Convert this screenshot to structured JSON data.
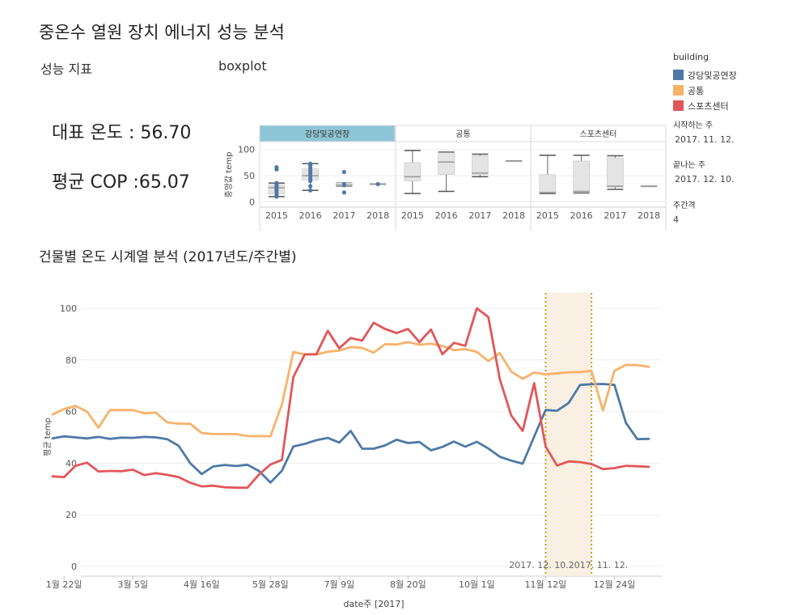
{
  "title": "중온수 열원 장치 에너지 성능 분석",
  "performance": {
    "label": "성능 지표",
    "rep_temp": "대표 온도 : 56.70",
    "avg_cop": "평균 COP :65.07"
  },
  "boxplot_label": "boxplot",
  "timeseries_title": "건물별  온도 시계열 분석 (2017년도/주간별)",
  "legend": {
    "title": "building",
    "items": [
      {
        "label": "강당및공연장",
        "color": "#4e79a7"
      },
      {
        "label": "공통",
        "color": "#f8b26a"
      },
      {
        "label": "스포츠센터",
        "color": "#e15759"
      }
    ]
  },
  "parameters": [
    {
      "label": "시작하는 주",
      "value": "2017. 11. 12."
    },
    {
      "label": "끝나는 주",
      "value": "2017. 12. 10."
    },
    {
      "label": "주간격",
      "value": "4"
    }
  ],
  "chart_data": [
    {
      "type": "boxplot",
      "ylabel": "중앙값 temp",
      "yticks": [
        0,
        50,
        100
      ],
      "ylim": [
        -10,
        115
      ],
      "facet_header_highlight": "#8ec5d6",
      "facets": [
        {
          "name": "강당및공연장",
          "categories": [
            "2015",
            "2016",
            "2017",
            "2018"
          ],
          "boxes": [
            {
              "min": 10,
              "q1": 15,
              "median": 27,
              "q3": 33,
              "max": 36,
              "points": [
                10,
                13,
                18,
                22,
                25,
                27,
                30,
                33,
                36,
                62,
                66
              ]
            },
            {
              "min": 22,
              "q1": 42,
              "median": 50,
              "q3": 63,
              "max": 73,
              "points": [
                22,
                30,
                40,
                45,
                50,
                55,
                60,
                65,
                70,
                73
              ]
            },
            {
              "min": 30,
              "q1": 30,
              "median": 32,
              "q3": 36,
              "max": 36,
              "points": [
                18,
                32,
                34,
                57
              ]
            },
            {
              "min": 34,
              "q1": 34,
              "median": 34,
              "q3": 34,
              "max": 34,
              "points": [
                34
              ]
            }
          ]
        },
        {
          "name": "공통",
          "categories": [
            "2015",
            "2016",
            "2017",
            "2018"
          ],
          "boxes": [
            {
              "min": 16,
              "q1": 40,
              "median": 48,
              "q3": 75,
              "max": 98
            },
            {
              "min": 20,
              "q1": 52,
              "median": 76,
              "q3": 94,
              "max": 95
            },
            {
              "min": 48,
              "q1": 52,
              "median": 55,
              "q3": 88,
              "max": 91
            },
            {
              "min": 78,
              "q1": 78,
              "median": 78,
              "q3": 78,
              "max": 78
            }
          ]
        },
        {
          "name": "스포츠센터",
          "categories": [
            "2015",
            "2016",
            "2017",
            "2018"
          ],
          "boxes": [
            {
              "min": 16,
              "q1": 17,
              "median": 18,
              "q3": 52,
              "max": 89
            },
            {
              "min": 17,
              "q1": 18,
              "median": 20,
              "q3": 78,
              "max": 89
            },
            {
              "min": 24,
              "q1": 28,
              "median": 30,
              "q3": 84,
              "max": 88
            },
            {
              "min": 30,
              "q1": 30,
              "median": 30,
              "q3": 30,
              "max": 30
            }
          ]
        }
      ]
    },
    {
      "type": "line",
      "xlabel": "date주 [2017]",
      "ylabel": "평균 temp",
      "ylim": [
        0,
        100
      ],
      "yticks": [
        0,
        20,
        40,
        60,
        80,
        100
      ],
      "x_ticks": [
        {
          "week": 2,
          "label": "1월 22일"
        },
        {
          "week": 8,
          "label": "3월 5일"
        },
        {
          "week": 14,
          "label": "4월 16일"
        },
        {
          "week": 20,
          "label": "5월 28일"
        },
        {
          "week": 26,
          "label": "7월 9일"
        },
        {
          "week": 32,
          "label": "8월 20일"
        },
        {
          "week": 38,
          "label": "10월 1일"
        },
        {
          "week": 44,
          "label": "11월 12일"
        },
        {
          "week": 50,
          "label": "12월 24일"
        }
      ],
      "highlight": {
        "start_week": 44,
        "end_week": 48,
        "label": "2017. 12. 10.2017. 11. 12."
      },
      "series": [
        {
          "name": "강당및공연장",
          "color": "#4e79a7",
          "values": [
            49.6,
            50.4,
            50,
            49.6,
            50.2,
            49.4,
            49.9,
            49.8,
            50.2,
            50,
            49.3,
            46.7,
            40,
            35.8,
            38.7,
            39.3,
            38.9,
            39.4,
            37,
            32.5,
            37.1,
            46.5,
            47.5,
            48.9,
            49.8,
            48,
            52.5,
            45.6,
            45.6,
            46.9,
            49.1,
            47.8,
            48.2,
            45,
            46.3,
            48.4,
            46.4,
            48.3,
            45.7,
            42.5,
            41,
            39.8,
            50.3,
            60.6,
            60.3,
            63.3,
            70.3,
            70.6,
            70.7,
            70.3,
            55.6,
            49.3,
            49.4
          ]
        },
        {
          "name": "공통",
          "color": "#f8b26a",
          "values": [
            58.9,
            61,
            62.2,
            60,
            53.8,
            60.6,
            60.6,
            60.6,
            59.3,
            59.6,
            55.8,
            55.3,
            55.3,
            51.7,
            51.3,
            51.3,
            51.3,
            50.5,
            50.5,
            50.4,
            62.8,
            83.1,
            82.1,
            82.1,
            83.2,
            83.6,
            85,
            84.7,
            82.8,
            86.1,
            86,
            86.9,
            85.9,
            86.3,
            85.4,
            83.8,
            84.2,
            83.1,
            79.6,
            82.7,
            75.5,
            72.7,
            75.1,
            74.4,
            74.8,
            75.2,
            75.3,
            75.8,
            60.4,
            75.8,
            78.1,
            78,
            77.3
          ]
        },
        {
          "name": "스포츠센터",
          "color": "#e15759",
          "values": [
            34.9,
            34.6,
            39,
            40.2,
            36.8,
            37,
            36.9,
            37.5,
            35.4,
            36.1,
            35.5,
            34.6,
            32.4,
            31,
            31.3,
            30.7,
            30.5,
            30.5,
            35.6,
            39.5,
            41.3,
            73.4,
            82.2,
            82.2,
            91.3,
            84.5,
            88.5,
            87.5,
            94.4,
            92,
            90.4,
            92,
            86.9,
            91.8,
            82.2,
            86.6,
            85.5,
            100,
            96.6,
            72.6,
            58.5,
            52.5,
            71,
            46.5,
            39.1,
            40.7,
            40.4,
            39.7,
            37.7,
            38.1,
            39,
            38.8,
            38.6
          ]
        }
      ]
    }
  ]
}
